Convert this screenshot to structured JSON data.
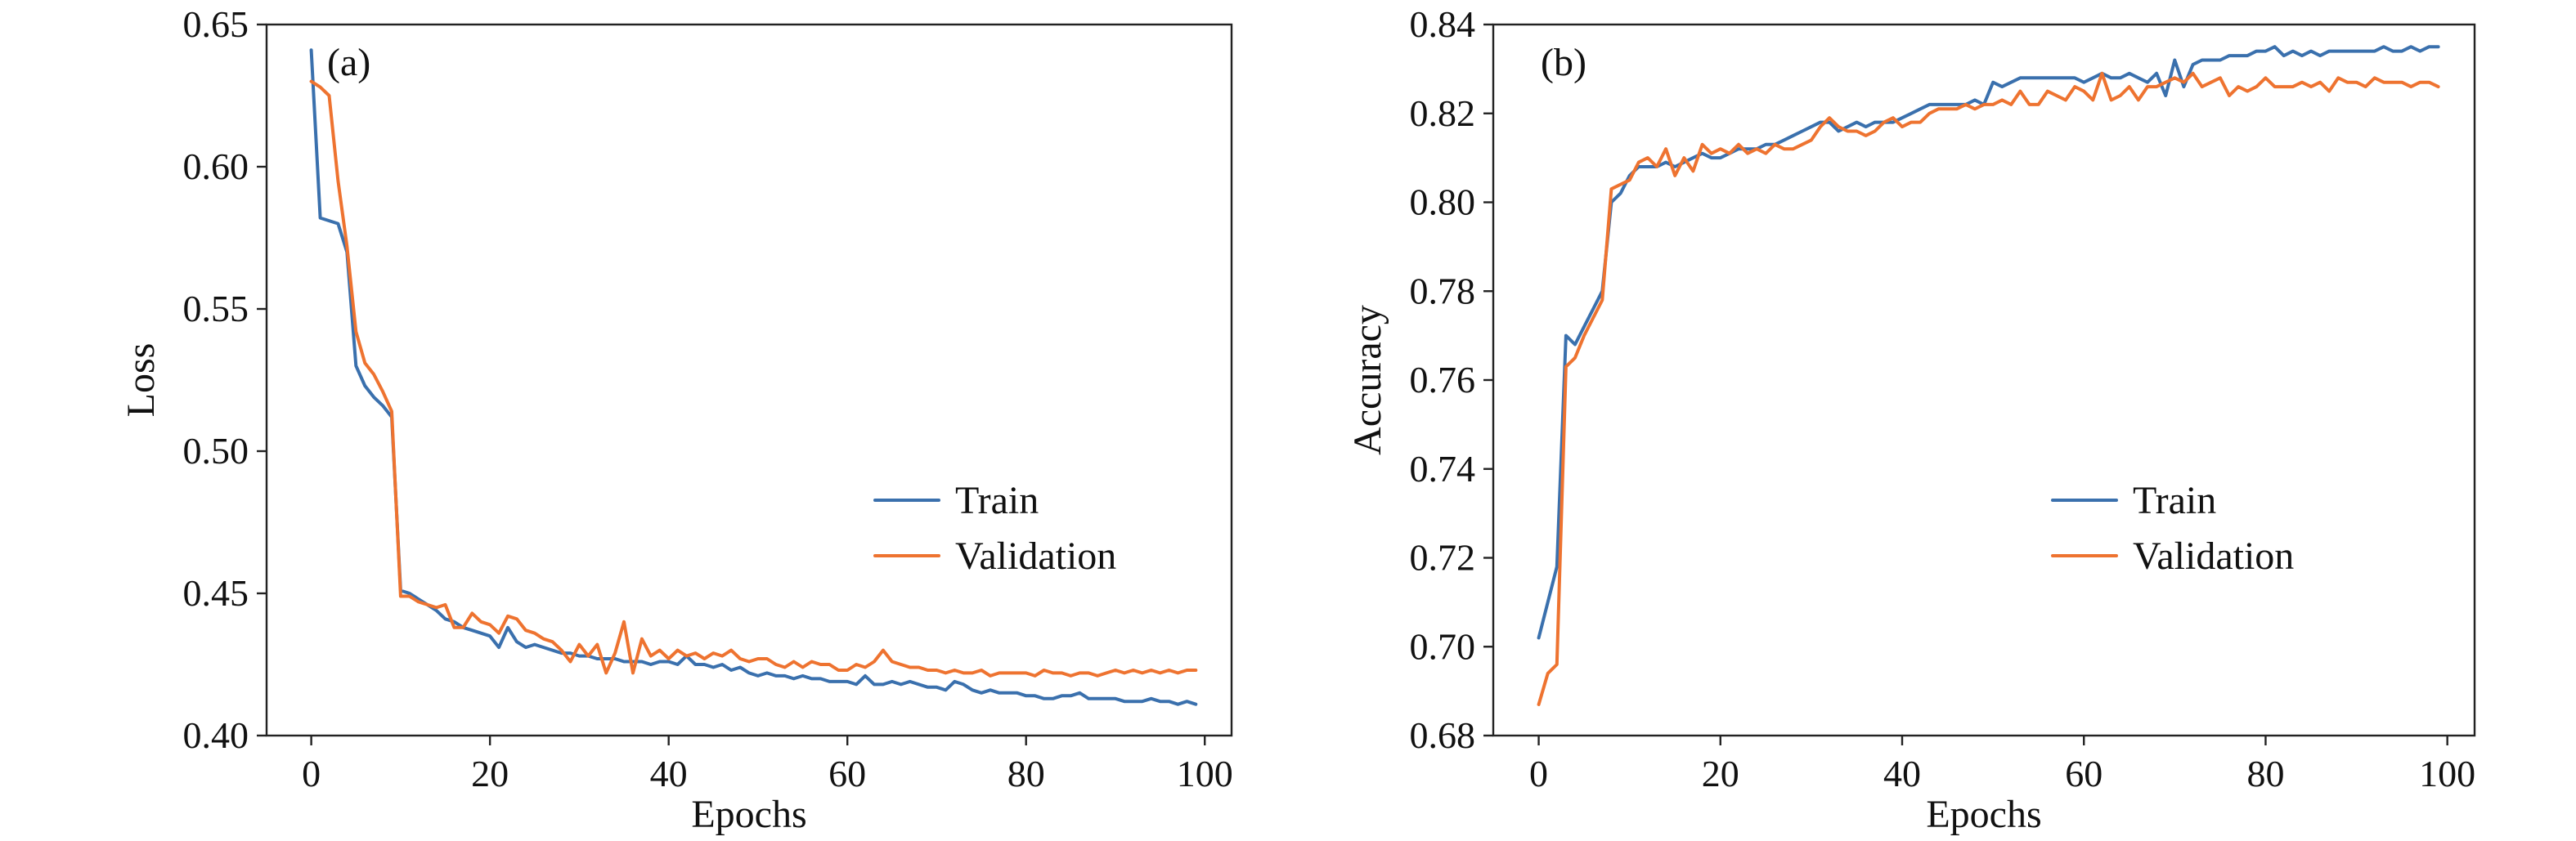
{
  "colors": {
    "train": "#3a70ad",
    "validation": "#ee7330"
  },
  "chart_data": [
    {
      "type": "line",
      "panel_label": "(a)",
      "xlabel": "Epochs",
      "ylabel": "Loss",
      "xlim": [
        -5,
        103
      ],
      "ylim": [
        0.4,
        0.65
      ],
      "xticks": [
        0,
        20,
        40,
        60,
        80,
        100
      ],
      "yticks": [
        0.4,
        0.45,
        0.5,
        0.55,
        0.6,
        0.65
      ],
      "ytick_labels": [
        "0.40",
        "0.45",
        "0.50",
        "0.55",
        "0.60",
        "0.65"
      ],
      "legend_position": "center-right",
      "series": [
        {
          "name": "Train",
          "x": [
            0,
            1,
            2,
            3,
            4,
            5,
            6,
            7,
            8,
            9,
            10,
            11,
            12,
            13,
            14,
            15,
            16,
            17,
            18,
            19,
            20,
            21,
            22,
            23,
            24,
            25,
            26,
            27,
            28,
            29,
            30,
            31,
            32,
            33,
            34,
            35,
            36,
            37,
            38,
            39,
            40,
            41,
            42,
            43,
            44,
            45,
            46,
            47,
            48,
            49,
            50,
            51,
            52,
            53,
            54,
            55,
            56,
            57,
            58,
            59,
            60,
            61,
            62,
            63,
            64,
            65,
            66,
            67,
            68,
            69,
            70,
            71,
            72,
            73,
            74,
            75,
            76,
            77,
            78,
            79,
            80,
            81,
            82,
            83,
            84,
            85,
            86,
            87,
            88,
            89,
            90,
            91,
            92,
            93,
            94,
            95,
            96,
            97,
            98,
            99
          ],
          "values": [
            0.641,
            0.582,
            0.581,
            0.58,
            0.57,
            0.53,
            0.523,
            0.519,
            0.516,
            0.512,
            0.451,
            0.45,
            0.448,
            0.446,
            0.444,
            0.441,
            0.44,
            0.438,
            0.437,
            0.436,
            0.435,
            0.431,
            0.438,
            0.433,
            0.431,
            0.432,
            0.431,
            0.43,
            0.429,
            0.429,
            0.428,
            0.428,
            0.427,
            0.427,
            0.427,
            0.426,
            0.426,
            0.426,
            0.425,
            0.426,
            0.426,
            0.425,
            0.428,
            0.425,
            0.425,
            0.424,
            0.425,
            0.423,
            0.424,
            0.422,
            0.421,
            0.422,
            0.421,
            0.421,
            0.42,
            0.421,
            0.42,
            0.42,
            0.419,
            0.419,
            0.419,
            0.418,
            0.421,
            0.418,
            0.418,
            0.419,
            0.418,
            0.419,
            0.418,
            0.417,
            0.417,
            0.416,
            0.419,
            0.418,
            0.416,
            0.415,
            0.416,
            0.415,
            0.415,
            0.415,
            0.414,
            0.414,
            0.413,
            0.413,
            0.414,
            0.414,
            0.415,
            0.413,
            0.413,
            0.413,
            0.413,
            0.412,
            0.412,
            0.412,
            0.413,
            0.412,
            0.412,
            0.411,
            0.412,
            0.411
          ]
        },
        {
          "name": "Validation",
          "x": [
            0,
            1,
            2,
            3,
            4,
            5,
            6,
            7,
            8,
            9,
            10,
            11,
            12,
            13,
            14,
            15,
            16,
            17,
            18,
            19,
            20,
            21,
            22,
            23,
            24,
            25,
            26,
            27,
            28,
            29,
            30,
            31,
            32,
            33,
            34,
            35,
            36,
            37,
            38,
            39,
            40,
            41,
            42,
            43,
            44,
            45,
            46,
            47,
            48,
            49,
            50,
            51,
            52,
            53,
            54,
            55,
            56,
            57,
            58,
            59,
            60,
            61,
            62,
            63,
            64,
            65,
            66,
            67,
            68,
            69,
            70,
            71,
            72,
            73,
            74,
            75,
            76,
            77,
            78,
            79,
            80,
            81,
            82,
            83,
            84,
            85,
            86,
            87,
            88,
            89,
            90,
            91,
            92,
            93,
            94,
            95,
            96,
            97,
            98,
            99
          ],
          "values": [
            0.63,
            0.628,
            0.625,
            0.595,
            0.572,
            0.542,
            0.531,
            0.527,
            0.521,
            0.514,
            0.449,
            0.449,
            0.447,
            0.446,
            0.445,
            0.446,
            0.438,
            0.438,
            0.443,
            0.44,
            0.439,
            0.436,
            0.442,
            0.441,
            0.437,
            0.436,
            0.434,
            0.433,
            0.43,
            0.426,
            0.432,
            0.428,
            0.432,
            0.422,
            0.429,
            0.44,
            0.422,
            0.434,
            0.428,
            0.43,
            0.427,
            0.43,
            0.428,
            0.429,
            0.427,
            0.429,
            0.428,
            0.43,
            0.427,
            0.426,
            0.427,
            0.427,
            0.425,
            0.424,
            0.426,
            0.424,
            0.426,
            0.425,
            0.425,
            0.423,
            0.423,
            0.425,
            0.424,
            0.426,
            0.43,
            0.426,
            0.425,
            0.424,
            0.424,
            0.423,
            0.423,
            0.422,
            0.423,
            0.422,
            0.422,
            0.423,
            0.421,
            0.422,
            0.422,
            0.422,
            0.422,
            0.421,
            0.423,
            0.422,
            0.422,
            0.421,
            0.422,
            0.422,
            0.421,
            0.422,
            0.423,
            0.422,
            0.423,
            0.422,
            0.423,
            0.422,
            0.423,
            0.422,
            0.423,
            0.423
          ]
        }
      ]
    },
    {
      "type": "line",
      "panel_label": "(b)",
      "xlabel": "Epochs",
      "ylabel": "Accuracy",
      "xlim": [
        -5,
        103
      ],
      "ylim": [
        0.68,
        0.84
      ],
      "xticks": [
        0,
        20,
        40,
        60,
        80,
        100
      ],
      "yticks": [
        0.68,
        0.7,
        0.72,
        0.74,
        0.76,
        0.78,
        0.8,
        0.82,
        0.84
      ],
      "ytick_labels": [
        "0.68",
        "0.70",
        "0.72",
        "0.74",
        "0.76",
        "0.78",
        "0.80",
        "0.82",
        "0.84"
      ],
      "legend_position": "center-right",
      "series": [
        {
          "name": "Train",
          "x": [
            0,
            1,
            2,
            3,
            4,
            5,
            6,
            7,
            8,
            9,
            10,
            11,
            12,
            13,
            14,
            15,
            16,
            17,
            18,
            19,
            20,
            21,
            22,
            23,
            24,
            25,
            26,
            27,
            28,
            29,
            30,
            31,
            32,
            33,
            34,
            35,
            36,
            37,
            38,
            39,
            40,
            41,
            42,
            43,
            44,
            45,
            46,
            47,
            48,
            49,
            50,
            51,
            52,
            53,
            54,
            55,
            56,
            57,
            58,
            59,
            60,
            61,
            62,
            63,
            64,
            65,
            66,
            67,
            68,
            69,
            70,
            71,
            72,
            73,
            74,
            75,
            76,
            77,
            78,
            79,
            80,
            81,
            82,
            83,
            84,
            85,
            86,
            87,
            88,
            89,
            90,
            91,
            92,
            93,
            94,
            95,
            96,
            97,
            98,
            99
          ],
          "values": [
            0.702,
            0.71,
            0.718,
            0.77,
            0.768,
            0.772,
            0.776,
            0.78,
            0.8,
            0.802,
            0.806,
            0.808,
            0.808,
            0.808,
            0.809,
            0.808,
            0.809,
            0.81,
            0.811,
            0.81,
            0.81,
            0.811,
            0.812,
            0.812,
            0.812,
            0.813,
            0.813,
            0.814,
            0.815,
            0.816,
            0.817,
            0.818,
            0.818,
            0.816,
            0.817,
            0.818,
            0.817,
            0.818,
            0.818,
            0.818,
            0.819,
            0.82,
            0.821,
            0.822,
            0.822,
            0.822,
            0.822,
            0.822,
            0.823,
            0.822,
            0.827,
            0.826,
            0.827,
            0.828,
            0.828,
            0.828,
            0.828,
            0.828,
            0.828,
            0.828,
            0.827,
            0.828,
            0.829,
            0.828,
            0.828,
            0.829,
            0.828,
            0.827,
            0.829,
            0.824,
            0.832,
            0.826,
            0.831,
            0.832,
            0.832,
            0.832,
            0.833,
            0.833,
            0.833,
            0.834,
            0.834,
            0.835,
            0.833,
            0.834,
            0.833,
            0.834,
            0.833,
            0.834,
            0.834,
            0.834,
            0.834,
            0.834,
            0.834,
            0.835,
            0.834,
            0.834,
            0.835,
            0.834,
            0.835,
            0.835
          ]
        },
        {
          "name": "Validation",
          "x": [
            0,
            1,
            2,
            3,
            4,
            5,
            6,
            7,
            8,
            9,
            10,
            11,
            12,
            13,
            14,
            15,
            16,
            17,
            18,
            19,
            20,
            21,
            22,
            23,
            24,
            25,
            26,
            27,
            28,
            29,
            30,
            31,
            32,
            33,
            34,
            35,
            36,
            37,
            38,
            39,
            40,
            41,
            42,
            43,
            44,
            45,
            46,
            47,
            48,
            49,
            50,
            51,
            52,
            53,
            54,
            55,
            56,
            57,
            58,
            59,
            60,
            61,
            62,
            63,
            64,
            65,
            66,
            67,
            68,
            69,
            70,
            71,
            72,
            73,
            74,
            75,
            76,
            77,
            78,
            79,
            80,
            81,
            82,
            83,
            84,
            85,
            86,
            87,
            88,
            89,
            90,
            91,
            92,
            93,
            94,
            95,
            96,
            97,
            98,
            99
          ],
          "values": [
            0.687,
            0.694,
            0.696,
            0.763,
            0.765,
            0.77,
            0.774,
            0.778,
            0.803,
            0.804,
            0.805,
            0.809,
            0.81,
            0.808,
            0.812,
            0.806,
            0.81,
            0.807,
            0.813,
            0.811,
            0.812,
            0.811,
            0.813,
            0.811,
            0.812,
            0.811,
            0.813,
            0.812,
            0.812,
            0.813,
            0.814,
            0.817,
            0.819,
            0.817,
            0.816,
            0.816,
            0.815,
            0.816,
            0.818,
            0.819,
            0.817,
            0.818,
            0.818,
            0.82,
            0.821,
            0.821,
            0.821,
            0.822,
            0.821,
            0.822,
            0.822,
            0.823,
            0.822,
            0.825,
            0.822,
            0.822,
            0.825,
            0.824,
            0.823,
            0.826,
            0.825,
            0.823,
            0.829,
            0.823,
            0.824,
            0.826,
            0.823,
            0.826,
            0.826,
            0.827,
            0.828,
            0.827,
            0.829,
            0.826,
            0.827,
            0.828,
            0.824,
            0.826,
            0.825,
            0.826,
            0.828,
            0.826,
            0.826,
            0.826,
            0.827,
            0.826,
            0.827,
            0.825,
            0.828,
            0.827,
            0.827,
            0.826,
            0.828,
            0.827,
            0.827,
            0.827,
            0.826,
            0.827,
            0.827,
            0.826
          ]
        }
      ]
    }
  ]
}
